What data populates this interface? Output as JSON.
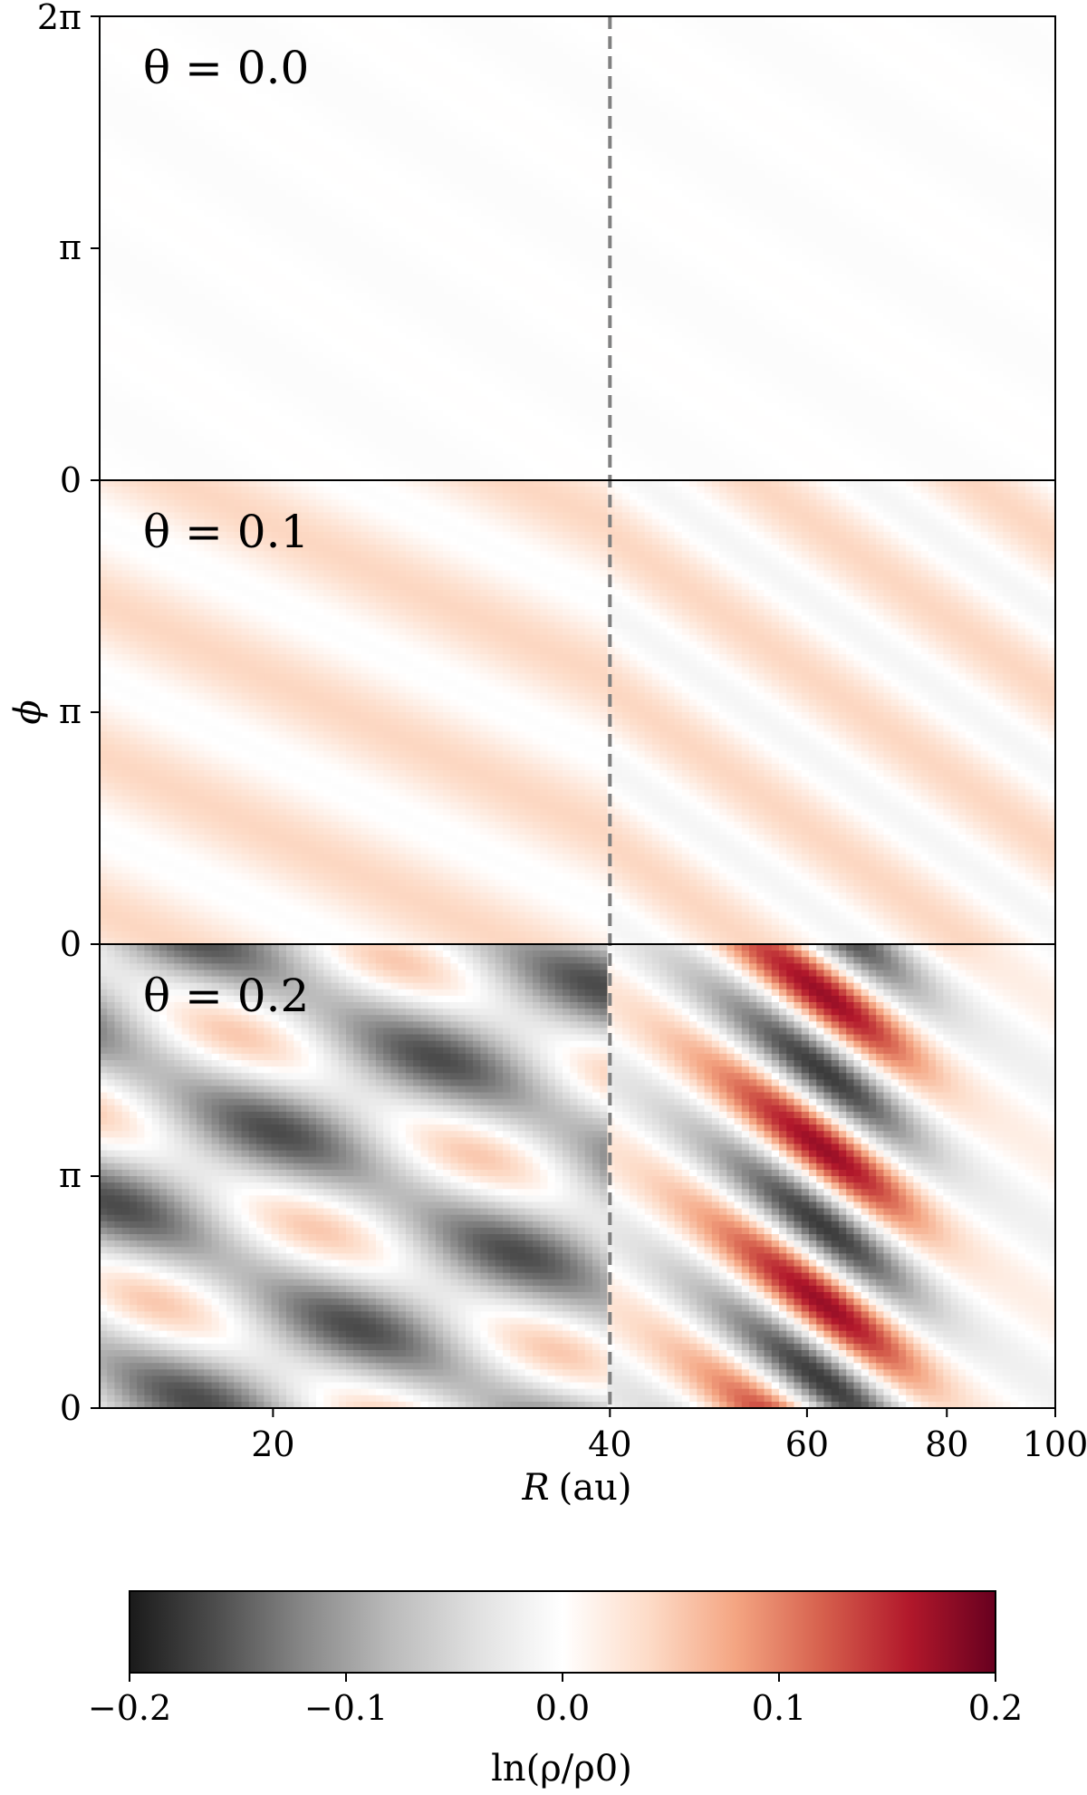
{
  "chart_data": {
    "type": "heatmap",
    "panels": [
      {
        "label": "θ = 0.0",
        "amplitude": 0.008
      },
      {
        "label": "θ = 0.1",
        "amplitude": 0.045
      },
      {
        "label": "θ = 0.2",
        "amplitude": 0.12
      }
    ],
    "xaxis": {
      "label_var": "R",
      "label_unit": "(au)",
      "scale": "log",
      "range": [
        14,
        100
      ],
      "ticks": [
        20,
        40,
        60,
        80,
        100
      ],
      "tick_labels": [
        "20",
        "40",
        "60",
        "80",
        "100"
      ]
    },
    "yaxis": {
      "label": "ϕ",
      "range": [
        0,
        6.2832
      ],
      "top_panel_tick_labels": [
        "0",
        "π",
        "2π"
      ],
      "lower_panel_tick_labels": [
        "0",
        "π"
      ]
    },
    "reference_line": {
      "R": 40,
      "style": "dashed",
      "color": "#808080"
    },
    "colorbar": {
      "label": "ln(ρ/ρ0)",
      "range": [
        -0.2,
        0.2
      ],
      "ticks": [
        -0.2,
        -0.1,
        0.0,
        0.1,
        0.2
      ],
      "tick_labels": [
        "−0.2",
        "−0.1",
        "0.0",
        "0.1",
        "0.2"
      ],
      "colormap": "RdGy_r",
      "colors": [
        "#1a1a1a",
        "#4d4d4d",
        "#878787",
        "#bababa",
        "#e0e0e0",
        "#ffffff",
        "#fddbc7",
        "#f4a582",
        "#d6604d",
        "#b2182b",
        "#67001f"
      ]
    }
  }
}
